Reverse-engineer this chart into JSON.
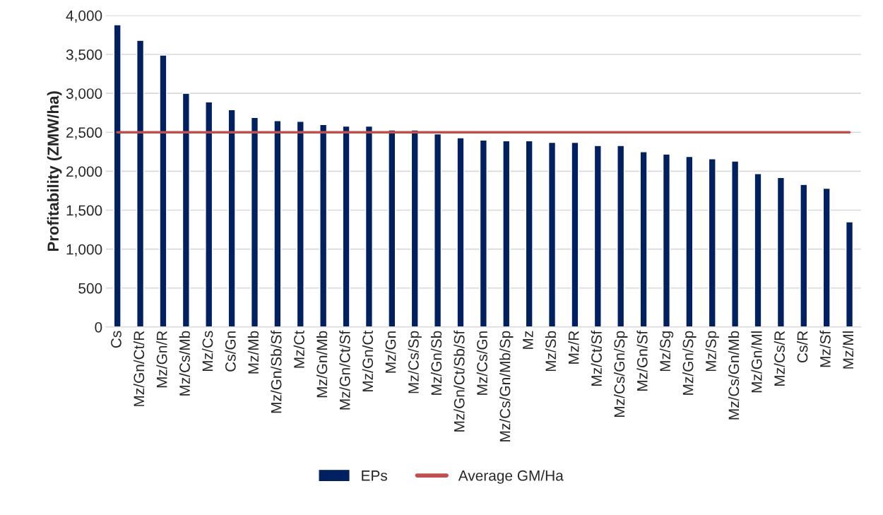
{
  "chart_data": {
    "type": "bar",
    "ylabel": "Profitability (ZMW/ha)",
    "categories": [
      "Cs",
      "Mz/Gn/Ct/R",
      "Mz/Gn/R",
      "Mz/Cs/Mb",
      "Mz/Cs",
      "Cs/Gn",
      "Mz/Mb",
      "Mz/Gn/Sb/Sf",
      "Mz/Ct",
      "Mz/Gn/Mb",
      "Mz/Gn/Ct/Sf",
      "Mz/Gn/Ct",
      "Mz/Gn",
      "Mz/Cs/Sp",
      "Mz/Gn/Sb",
      "Mz/Gn/Ct/Sb/Sf",
      "Mz/Cs/Gn",
      "Mz/Cs/Gn/Mb/Sp",
      "Mz",
      "Mz/Sb",
      "Mz/R",
      "Mz/Ct/Sf",
      "Mz/Cs/Gn/Sp",
      "Mz/Gn/Sf",
      "Mz/Sg",
      "Mz/Gn/Sp",
      "Mz/Sp",
      "Mz/Cs/Gn/Mb",
      "Mz/Gn/Ml",
      "Mz/Cs/R",
      "Cs/R",
      "Mz/Sf",
      "Mz/Ml"
    ],
    "series": [
      {
        "name": "EPs",
        "color": "#002060",
        "values": [
          3880,
          3680,
          3490,
          3000,
          2890,
          2790,
          2690,
          2650,
          2640,
          2600,
          2580,
          2580,
          2530,
          2530,
          2480,
          2430,
          2400,
          2390,
          2390,
          2370,
          2370,
          2330,
          2330,
          2250,
          2220,
          2190,
          2160,
          2130,
          1970,
          1920,
          1830,
          1780,
          1350
        ]
      },
      {
        "name": "Average GM/Ha",
        "type": "line",
        "color": "#c0504d",
        "values": [
          2500,
          2500,
          2500,
          2500,
          2500,
          2500,
          2500,
          2500,
          2500,
          2500,
          2500,
          2500,
          2500,
          2500,
          2500,
          2500,
          2500,
          2500,
          2500,
          2500,
          2500,
          2500,
          2500,
          2500,
          2500,
          2500,
          2500,
          2500,
          2500,
          2500,
          2500,
          2500,
          2500
        ]
      }
    ],
    "ylim": [
      0,
      4000
    ],
    "yticks": [
      {
        "value": 0,
        "label": "0"
      },
      {
        "value": 500,
        "label": "500"
      },
      {
        "value": 1000,
        "label": "1,000"
      },
      {
        "value": 1500,
        "label": "1,500"
      },
      {
        "value": 2000,
        "label": "2,000"
      },
      {
        "value": 2500,
        "label": "2,500"
      },
      {
        "value": 3000,
        "label": "3,000"
      },
      {
        "value": 3500,
        "label": "3,500"
      },
      {
        "value": 4000,
        "label": "4,000"
      }
    ],
    "grid": "y",
    "legend": "bottom"
  }
}
